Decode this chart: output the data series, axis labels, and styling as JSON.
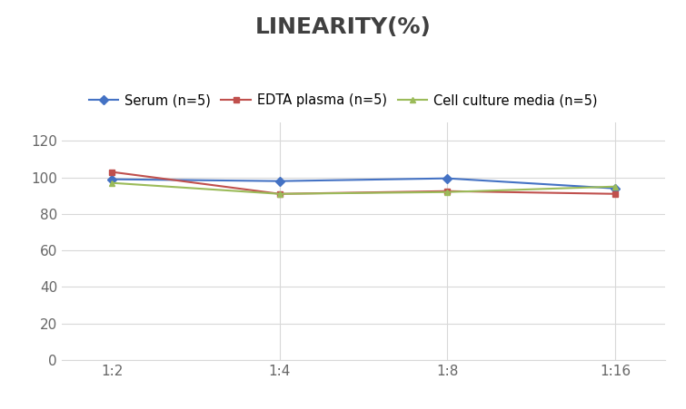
{
  "title": "LINEARITY(%)",
  "x_labels": [
    "1:2",
    "1:4",
    "1:8",
    "1:16"
  ],
  "x_positions": [
    0,
    1,
    2,
    3
  ],
  "series": [
    {
      "label": "Serum (n=5)",
      "values": [
        99,
        98,
        99.5,
        94
      ],
      "color": "#4472C4",
      "marker": "D",
      "linewidth": 1.5,
      "markersize": 5
    },
    {
      "label": "EDTA plasma (n=5)",
      "values": [
        103,
        91,
        92.5,
        91
      ],
      "color": "#C0504D",
      "marker": "s",
      "linewidth": 1.5,
      "markersize": 5
    },
    {
      "label": "Cell culture media (n=5)",
      "values": [
        97,
        91,
        92,
        95
      ],
      "color": "#9BBB59",
      "marker": "^",
      "linewidth": 1.5,
      "markersize": 5
    }
  ],
  "ylim": [
    0,
    130
  ],
  "yticks": [
    0,
    20,
    40,
    60,
    80,
    100,
    120
  ],
  "background_color": "#FFFFFF",
  "title_fontsize": 18,
  "legend_fontsize": 10.5,
  "tick_fontsize": 11,
  "grid_color": "#D8D8D8",
  "title_color": "#404040"
}
